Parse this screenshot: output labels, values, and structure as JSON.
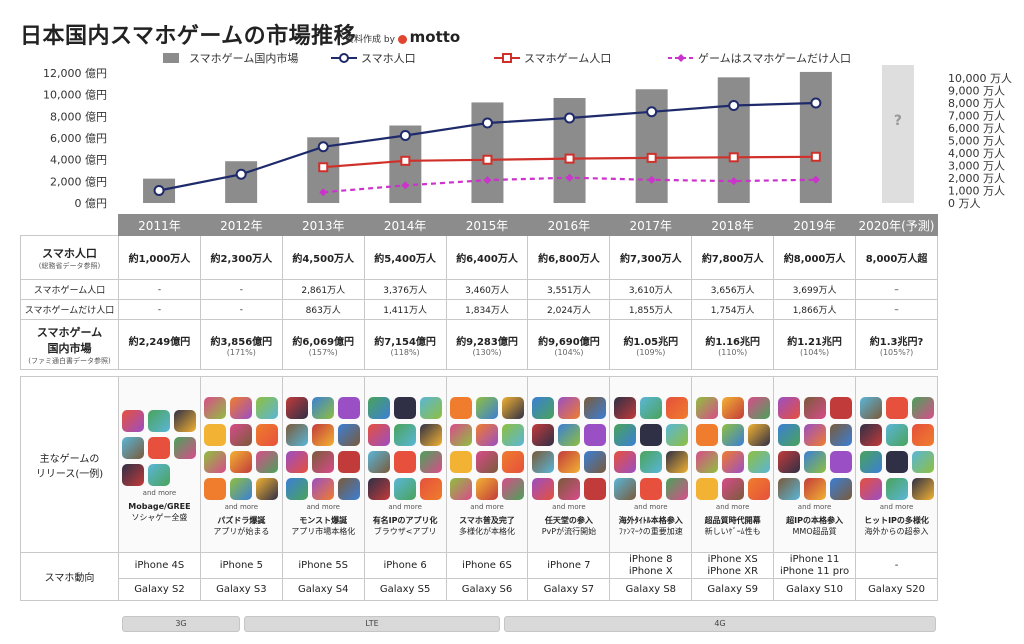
{
  "title": "日本国内スマホゲームの市場推移",
  "credit": {
    "prefix": "資料作成 by",
    "brand": "motto"
  },
  "chart_data": {
    "type": "bar",
    "categories": [
      "2011年",
      "2012年",
      "2013年",
      "2014年",
      "2015年",
      "2016年",
      "2017年",
      "2018年",
      "2019年",
      "2020年(予測)"
    ],
    "legend": [
      "スマホゲーム国内市場",
      "スマホ人口",
      "スマホゲーム人口",
      "ゲームはスマホゲームだけ人口"
    ],
    "left_axis": {
      "ticks": [
        "0 億円",
        "2,000 億円",
        "4,000 億円",
        "6,000 億円",
        "8,000 億円",
        "10,000 億円",
        "12,000 億円"
      ],
      "range": [
        0,
        12000
      ]
    },
    "right_axis": {
      "ticks": [
        "0 万人",
        "1,000 万人",
        "2,000 万人",
        "3,000 万人",
        "4,000 万人",
        "5,000 万人",
        "6,000 万人",
        "7,000 万人",
        "8,000 万人",
        "9,000 万人",
        "10,000 万人"
      ],
      "range": [
        0,
        10000
      ]
    },
    "series": [
      {
        "name": "スマホゲーム国内市場",
        "kind": "bar",
        "color": "#8c8c8c",
        "values": [
          2249,
          3856,
          6069,
          7154,
          9283,
          9690,
          10500,
          11600,
          12100,
          null
        ],
        "forecast_label": "?"
      },
      {
        "name": "スマホ人口",
        "kind": "line",
        "color": "#1f2a6b",
        "values": [
          1000,
          2300,
          4500,
          5400,
          6400,
          6800,
          7300,
          7800,
          8000,
          null
        ]
      },
      {
        "name": "スマホゲーム人口",
        "kind": "line",
        "color": "#d0302a",
        "values": [
          null,
          null,
          2861,
          3376,
          3460,
          3551,
          3610,
          3656,
          3699,
          null
        ]
      },
      {
        "name": "ゲームはスマホゲームだけ人口",
        "kind": "line-dashed",
        "color": "#cc33cc",
        "values": [
          null,
          null,
          863,
          1411,
          1834,
          2024,
          1855,
          1754,
          1866,
          null
        ]
      }
    ]
  },
  "table": {
    "years": [
      "2011年",
      "2012年",
      "2013年",
      "2014年",
      "2015年",
      "2016年",
      "2017年",
      "2018年",
      "2019年",
      "2020年(予測)"
    ],
    "smartphone_pop": {
      "label": "スマホ人口",
      "sub": "(総務省データ参照)",
      "values": [
        "約1,000万人",
        "約2,300万人",
        "約4,500万人",
        "約5,400万人",
        "約6,400万人",
        "約6,800万人",
        "約7,300万人",
        "約7,800万人",
        "約8,000万人",
        "8,000万人超"
      ]
    },
    "game_pop": {
      "label": "スマホゲーム人口",
      "values": [
        "-",
        "-",
        "2,861万人",
        "3,376万人",
        "3,460万人",
        "3,551万人",
        "3,610万人",
        "3,656万人",
        "3,699万人",
        "–"
      ]
    },
    "only_game_pop": {
      "label": "スマホゲームだけ人口",
      "values": [
        "-",
        "-",
        "863万人",
        "1,411万人",
        "1,834万人",
        "2,024万人",
        "1,855万人",
        "1,754万人",
        "1,866万人",
        "–"
      ]
    },
    "market": {
      "label": "スマホゲーム\n国内市場",
      "sub": "(ファミ通白書データ参照)",
      "values": [
        "約2,249億円",
        "約3,856億円",
        "約6,069億円",
        "約7,154億円",
        "約9,283億円",
        "約9,690億円",
        "約1.05兆円",
        "約1.16兆円",
        "約1.21兆円",
        "約1.3兆円?"
      ],
      "growth": [
        "",
        "(171%)",
        "(157%)",
        "(118%)",
        "(130%)",
        "(104%)",
        "(109%)",
        "(110%)",
        "(104%)",
        "(105%?)"
      ]
    },
    "games": {
      "label": "主なゲームの\nリリース(一例)",
      "more": "and more",
      "icon_badge": "mobage",
      "headlines": [
        "Mobage/GREE",
        "パズドラ爆誕",
        "モンスト爆誕",
        "有名IPのアプリ化",
        "スマホ普及完了",
        "任天堂の参入",
        "海外ﾀｲﾄﾙ本格参入",
        "超品質時代開幕",
        "超IPの本格参入",
        "ヒットIPの多様化"
      ],
      "details": [
        "ソシャゲー全盛",
        "アプリが始まる",
        "アプリ市場本格化",
        "ブラウザ<アプリ",
        "多様化が本格化",
        "PvPが流行開始",
        "ﾌｧﾝﾏｰｸの重要加速",
        "新しいｹﾞｰﾑ性も",
        "MMO超品質",
        "海外からの超参入"
      ]
    },
    "devices": {
      "label": "スマホ動向",
      "iphone": [
        "iPhone 4S",
        "iPhone 5",
        "iPhone 5S",
        "iPhone 6",
        "iPhone 6S",
        "iPhone 7",
        "iPhone 8\niPhone X",
        "iPhone XS\niPhone XR",
        "iPhone 11\niPhone 11 pro",
        "-"
      ],
      "galaxy": [
        "Galaxy S2",
        "Galaxy S3",
        "Galaxy S4",
        "Galaxy S5",
        "Galaxy S6",
        "Galaxy S7",
        "Galaxy S8",
        "Galaxy S9",
        "Galaxy S10",
        "Galaxy S20"
      ]
    },
    "networks": [
      "3G",
      "LTE",
      "4G"
    ]
  },
  "icon_palette": [
    "#e6503c",
    "#3b7fd6",
    "#f2b233",
    "#4aa35a",
    "#9b4fc4",
    "#d94c8a",
    "#2f2f45",
    "#7a5a3a",
    "#ef7d2d",
    "#5ab6d8",
    "#c23b3b",
    "#8fbf3f"
  ]
}
